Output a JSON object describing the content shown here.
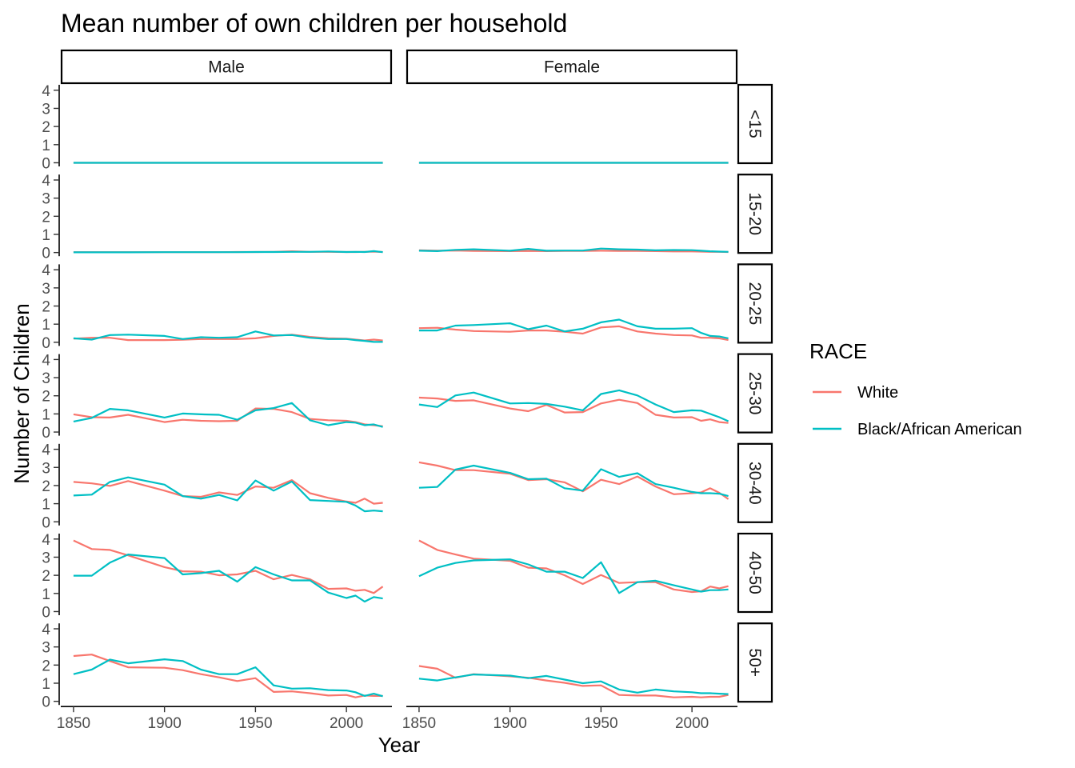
{
  "chart_data": {
    "type": "line",
    "title": "Mean number of own children per household",
    "xlabel": "Year",
    "ylabel": "Number of Children",
    "xlim": [
      1843,
      2025
    ],
    "ylim": [
      -0.2,
      4.3
    ],
    "x_ticks": [
      1850,
      1900,
      1950,
      2000
    ],
    "y_ticks": [
      0,
      1,
      2,
      3,
      4
    ],
    "grid": false,
    "legend": {
      "title": "RACE",
      "position": "right",
      "entries": [
        "White",
        "Black/African American"
      ]
    },
    "series_colors": {
      "White": "#F8766D",
      "Black/African American": "#00BFC4"
    },
    "columns": [
      "Male",
      "Female"
    ],
    "rows": [
      "<15",
      "15-20",
      "20-25",
      "25-30",
      "30-40",
      "40-50",
      "50+"
    ],
    "x": [
      1850,
      1860,
      1870,
      1880,
      1900,
      1910,
      1920,
      1930,
      1940,
      1950,
      1960,
      1970,
      1980,
      1990,
      2000,
      2005,
      2010,
      2015,
      2020
    ],
    "panels": [
      {
        "column": "Male",
        "row": "<15",
        "White": [
          0,
          0,
          0,
          0,
          0,
          0,
          0,
          0,
          0,
          0,
          0,
          0,
          0,
          0,
          0,
          0,
          0,
          0,
          0
        ],
        "Black/African American": [
          0,
          0,
          0,
          0,
          0,
          0,
          0,
          0,
          0,
          0,
          0,
          0,
          0,
          0,
          0,
          0,
          0,
          0,
          0
        ]
      },
      {
        "column": "Female",
        "row": "<15",
        "White": [
          0,
          0,
          0,
          0,
          0,
          0,
          0,
          0,
          0,
          0,
          0,
          0,
          0,
          0,
          0,
          0,
          0,
          0,
          0
        ],
        "Black/African American": [
          0,
          0,
          0,
          0,
          0,
          0,
          0,
          0,
          0,
          0,
          0,
          0,
          0,
          0,
          0,
          0,
          0,
          0,
          0
        ]
      },
      {
        "column": "Male",
        "row": "15-20",
        "White": [
          0.02,
          0.02,
          0.02,
          0.02,
          0.02,
          0.02,
          0.02,
          0.02,
          0.03,
          0.03,
          0.04,
          0.07,
          0.04,
          0.04,
          0.03,
          0.03,
          0.04,
          0.05,
          0.03
        ],
        "Black/African American": [
          0.01,
          0.01,
          0.01,
          0.01,
          0.02,
          0.02,
          0.02,
          0.02,
          0.02,
          0.03,
          0.03,
          0.04,
          0.04,
          0.06,
          0.03,
          0.04,
          0.03,
          0.08,
          0.02
        ]
      },
      {
        "column": "Female",
        "row": "15-20",
        "White": [
          0.12,
          0.1,
          0.11,
          0.09,
          0.08,
          0.09,
          0.08,
          0.09,
          0.09,
          0.1,
          0.09,
          0.09,
          0.08,
          0.06,
          0.06,
          0.05,
          0.04,
          0.04,
          0.03
        ],
        "Black/African American": [
          0.1,
          0.08,
          0.15,
          0.18,
          0.1,
          0.2,
          0.1,
          0.11,
          0.11,
          0.22,
          0.18,
          0.16,
          0.12,
          0.14,
          0.13,
          0.1,
          0.07,
          0.05,
          0.04
        ]
      },
      {
        "column": "Male",
        "row": "20-25",
        "White": [
          0.2,
          0.25,
          0.25,
          0.12,
          0.12,
          0.14,
          0.18,
          0.18,
          0.18,
          0.22,
          0.35,
          0.42,
          0.3,
          0.22,
          0.2,
          0.15,
          0.1,
          0.15,
          0.1
        ],
        "Black/African American": [
          0.22,
          0.15,
          0.4,
          0.42,
          0.35,
          0.18,
          0.28,
          0.25,
          0.28,
          0.6,
          0.38,
          0.4,
          0.25,
          0.18,
          0.18,
          0.12,
          0.08,
          0.02,
          0.02
        ]
      },
      {
        "column": "Female",
        "row": "20-25",
        "White": [
          0.78,
          0.8,
          0.7,
          0.62,
          0.58,
          0.65,
          0.65,
          0.58,
          0.48,
          0.82,
          0.88,
          0.6,
          0.48,
          0.4,
          0.38,
          0.25,
          0.25,
          0.22,
          0.12
        ],
        "Black/African American": [
          0.65,
          0.65,
          0.92,
          0.95,
          1.05,
          0.72,
          0.92,
          0.6,
          0.75,
          1.1,
          1.25,
          0.88,
          0.75,
          0.75,
          0.78,
          0.52,
          0.35,
          0.32,
          0.22
        ]
      },
      {
        "column": "Male",
        "row": "25-30",
        "White": [
          0.98,
          0.82,
          0.8,
          0.95,
          0.55,
          0.68,
          0.62,
          0.6,
          0.62,
          1.3,
          1.28,
          1.1,
          0.72,
          0.65,
          0.62,
          0.55,
          0.42,
          0.38,
          0.32
        ],
        "Black/African American": [
          0.58,
          0.78,
          1.28,
          1.2,
          0.8,
          1.02,
          0.98,
          0.95,
          0.68,
          1.2,
          1.32,
          1.6,
          0.65,
          0.38,
          0.55,
          0.52,
          0.38,
          0.42,
          0.28
        ]
      },
      {
        "column": "Female",
        "row": "25-30",
        "White": [
          1.9,
          1.85,
          1.72,
          1.75,
          1.3,
          1.15,
          1.5,
          1.08,
          1.1,
          1.58,
          1.78,
          1.6,
          0.95,
          0.8,
          0.82,
          0.62,
          0.7,
          0.55,
          0.5
        ],
        "Black/African American": [
          1.52,
          1.38,
          2.02,
          2.18,
          1.58,
          1.6,
          1.55,
          1.4,
          1.2,
          2.1,
          2.3,
          2.02,
          1.52,
          1.1,
          1.2,
          1.18,
          1.0,
          0.82,
          0.6
        ]
      },
      {
        "column": "Male",
        "row": "30-40",
        "White": [
          2.2,
          2.12,
          1.98,
          2.25,
          1.72,
          1.42,
          1.38,
          1.62,
          1.48,
          1.95,
          1.88,
          2.3,
          1.58,
          1.32,
          1.12,
          1.05,
          1.28,
          1.0,
          1.05
        ],
        "Black/African American": [
          1.45,
          1.5,
          2.2,
          2.45,
          2.05,
          1.42,
          1.28,
          1.48,
          1.18,
          2.28,
          1.72,
          2.22,
          1.2,
          1.15,
          1.1,
          0.9,
          0.58,
          0.62,
          0.58
        ]
      },
      {
        "column": "Female",
        "row": "30-40",
        "White": [
          3.28,
          3.1,
          2.85,
          2.85,
          2.65,
          2.3,
          2.35,
          2.18,
          1.68,
          2.32,
          2.08,
          2.5,
          1.95,
          1.52,
          1.58,
          1.62,
          1.85,
          1.6,
          1.25
        ],
        "Black/African American": [
          1.88,
          1.92,
          2.88,
          3.1,
          2.7,
          2.35,
          2.38,
          1.85,
          1.72,
          2.9,
          2.48,
          2.68,
          2.08,
          1.88,
          1.65,
          1.58,
          1.58,
          1.55,
          1.42
        ]
      },
      {
        "column": "Male",
        "row": "40-50",
        "White": [
          3.92,
          3.45,
          3.4,
          3.1,
          2.45,
          2.22,
          2.2,
          2.0,
          2.05,
          2.25,
          1.78,
          2.02,
          1.78,
          1.25,
          1.28,
          1.15,
          1.2,
          1.02,
          1.38
        ],
        "Black/African American": [
          1.98,
          1.98,
          2.7,
          3.15,
          2.95,
          2.05,
          2.12,
          2.25,
          1.65,
          2.45,
          2.05,
          1.72,
          1.72,
          1.05,
          0.75,
          0.88,
          0.55,
          0.8,
          0.72
        ]
      },
      {
        "column": "Female",
        "row": "40-50",
        "White": [
          3.92,
          3.4,
          3.15,
          2.92,
          2.8,
          2.42,
          2.38,
          2.0,
          1.52,
          2.02,
          1.58,
          1.62,
          1.62,
          1.22,
          1.08,
          1.12,
          1.38,
          1.28,
          1.4
        ],
        "Black/African American": [
          1.95,
          2.42,
          2.68,
          2.82,
          2.88,
          2.6,
          2.2,
          2.2,
          1.85,
          2.72,
          1.02,
          1.62,
          1.7,
          1.45,
          1.22,
          1.1,
          1.18,
          1.18,
          1.22
        ]
      },
      {
        "column": "Male",
        "row": "50+",
        "White": [
          2.5,
          2.58,
          2.22,
          1.88,
          1.85,
          1.72,
          1.5,
          1.32,
          1.12,
          1.28,
          0.52,
          0.55,
          0.45,
          0.32,
          0.35,
          0.22,
          0.32,
          0.3,
          0.3
        ],
        "Black/African American": [
          1.5,
          1.75,
          2.3,
          2.1,
          2.32,
          2.22,
          1.75,
          1.5,
          1.5,
          1.88,
          0.88,
          0.7,
          0.72,
          0.62,
          0.6,
          0.5,
          0.3,
          0.42,
          0.28
        ]
      },
      {
        "column": "Female",
        "row": "50+",
        "White": [
          1.95,
          1.8,
          1.3,
          1.5,
          1.38,
          1.3,
          1.15,
          1.02,
          0.85,
          0.88,
          0.35,
          0.32,
          0.32,
          0.22,
          0.25,
          0.22,
          0.25,
          0.25,
          0.35
        ],
        "Black/African American": [
          1.25,
          1.15,
          1.32,
          1.48,
          1.42,
          1.28,
          1.4,
          1.2,
          1.0,
          1.1,
          0.65,
          0.48,
          0.65,
          0.55,
          0.5,
          0.45,
          0.45,
          0.42,
          0.4
        ]
      }
    ]
  }
}
